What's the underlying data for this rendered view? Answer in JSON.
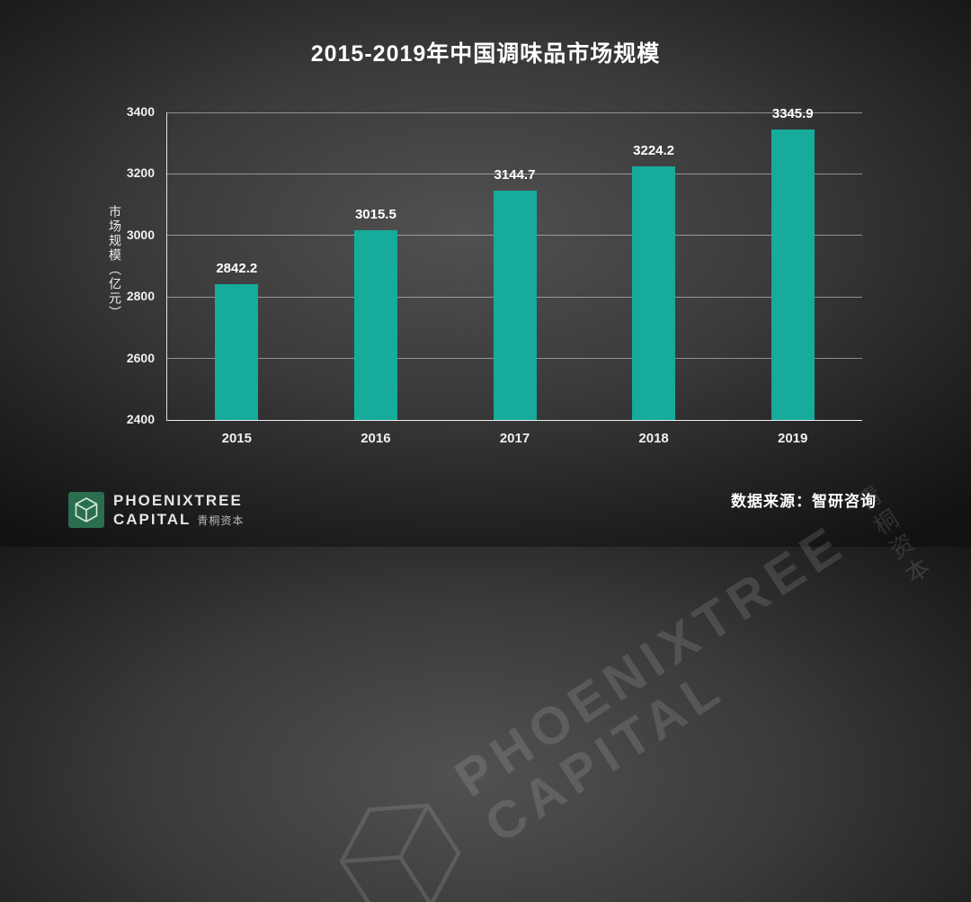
{
  "title": "2015-2019年中国调味品市场规模",
  "chart_data": {
    "type": "bar",
    "title": "2015-2019年中国调味品市场规模",
    "categories": [
      "2015",
      "2016",
      "2017",
      "2018",
      "2019"
    ],
    "values": [
      2842.2,
      3015.5,
      3144.7,
      3224.2,
      3345.9
    ],
    "value_labels": [
      "2842.2",
      "3015.5",
      "3144.7",
      "3224.2",
      "3345.9"
    ],
    "xlabel": "",
    "ylabel": "市场规模（亿元）",
    "ylim": [
      2400,
      3400
    ],
    "yticks": [
      2400,
      2600,
      2800,
      3000,
      3200,
      3400
    ],
    "grid": true,
    "legend": false,
    "bar_color": "#17ab9b"
  },
  "footer": {
    "source": "数据来源：智研咨询",
    "logo_line1": "PHOENIXTREE",
    "logo_line2": "CAPITAL",
    "logo_line2_cn": "青桐资本"
  },
  "watermark": {
    "line1": "PHOENIXTREE",
    "line2": "CAPITAL",
    "cn": "青桐资本"
  },
  "colors": {
    "bar": "#17ab9b",
    "background_center": "#4f4f4f",
    "background_edge": "#141414",
    "text": "#ffffff",
    "logo_green": "#2b6e4f"
  }
}
